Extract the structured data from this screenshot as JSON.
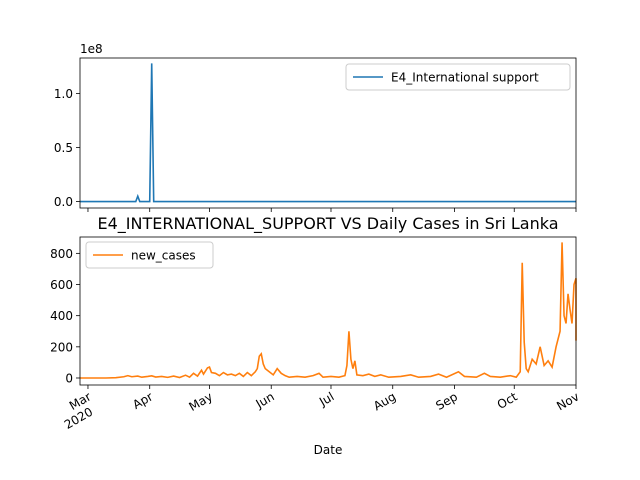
{
  "chart_data": [
    {
      "type": "line",
      "title": "",
      "xlabel": "",
      "ylabel": "",
      "y_scale_note": "1e8",
      "ylim": [
        -0.06,
        1.33
      ],
      "yticks": [
        0.0,
        0.5,
        1.0
      ],
      "ytick_labels": [
        "0.0",
        "0.5",
        "1.0"
      ],
      "legend_position": "upper-right",
      "series": [
        {
          "name": "E4_International support",
          "color": "#1f77b4",
          "points": [
            [
              "2020-02-26",
              0
            ],
            [
              "2020-03-25",
              0
            ],
            [
              "2020-03-26",
              0.05
            ],
            [
              "2020-03-27",
              0
            ],
            [
              "2020-04-01",
              0
            ],
            [
              "2020-04-02",
              1.28
            ],
            [
              "2020-04-03",
              0
            ],
            [
              "2020-11-01",
              0
            ]
          ]
        }
      ]
    },
    {
      "type": "line",
      "title": "E4_INTERNATIONAL_SUPPORT VS Daily Cases in Sri Lanka",
      "xlabel": "Date",
      "ylabel": "",
      "ylim": [
        -45,
        905
      ],
      "yticks": [
        0,
        200,
        400,
        600,
        800
      ],
      "ytick_labels": [
        "0",
        "200",
        "400",
        "600",
        "800"
      ],
      "xlim": [
        "2020-02-26",
        "2020-11-01"
      ],
      "xticks": [
        "2020-03-01",
        "2020-04-01",
        "2020-05-01",
        "2020-06-01",
        "2020-07-01",
        "2020-08-01",
        "2020-09-01",
        "2020-10-01",
        "2020-11-01"
      ],
      "xtick_labels": [
        "Mar\n2020",
        "Apr",
        "May",
        "Jun",
        "Jul",
        "Aug",
        "Sep",
        "Oct",
        "Nov"
      ],
      "legend_position": "upper-left",
      "series": [
        {
          "name": "new_cases",
          "color": "#ff7f0e",
          "points": [
            [
              "2020-02-26",
              0
            ],
            [
              "2020-03-10",
              0
            ],
            [
              "2020-03-15",
              2
            ],
            [
              "2020-03-19",
              8
            ],
            [
              "2020-03-21",
              15
            ],
            [
              "2020-03-23",
              8
            ],
            [
              "2020-03-26",
              12
            ],
            [
              "2020-03-28",
              5
            ],
            [
              "2020-03-31",
              10
            ],
            [
              "2020-04-02",
              14
            ],
            [
              "2020-04-04",
              6
            ],
            [
              "2020-04-07",
              10
            ],
            [
              "2020-04-10",
              4
            ],
            [
              "2020-04-13",
              12
            ],
            [
              "2020-04-16",
              3
            ],
            [
              "2020-04-19",
              18
            ],
            [
              "2020-04-21",
              5
            ],
            [
              "2020-04-23",
              30
            ],
            [
              "2020-04-25",
              12
            ],
            [
              "2020-04-27",
              50
            ],
            [
              "2020-04-28",
              25
            ],
            [
              "2020-04-30",
              65
            ],
            [
              "2020-05-01",
              70
            ],
            [
              "2020-05-02",
              35
            ],
            [
              "2020-05-04",
              30
            ],
            [
              "2020-05-06",
              15
            ],
            [
              "2020-05-08",
              35
            ],
            [
              "2020-05-10",
              20
            ],
            [
              "2020-05-12",
              25
            ],
            [
              "2020-05-14",
              15
            ],
            [
              "2020-05-16",
              30
            ],
            [
              "2020-05-18",
              10
            ],
            [
              "2020-05-20",
              35
            ],
            [
              "2020-05-22",
              15
            ],
            [
              "2020-05-24",
              40
            ],
            [
              "2020-05-25",
              60
            ],
            [
              "2020-05-26",
              140
            ],
            [
              "2020-05-27",
              155
            ],
            [
              "2020-05-28",
              90
            ],
            [
              "2020-05-29",
              60
            ],
            [
              "2020-05-31",
              40
            ],
            [
              "2020-06-02",
              20
            ],
            [
              "2020-06-04",
              60
            ],
            [
              "2020-06-06",
              30
            ],
            [
              "2020-06-08",
              15
            ],
            [
              "2020-06-10",
              5
            ],
            [
              "2020-06-14",
              10
            ],
            [
              "2020-06-18",
              5
            ],
            [
              "2020-06-22",
              15
            ],
            [
              "2020-06-25",
              30
            ],
            [
              "2020-06-27",
              5
            ],
            [
              "2020-07-01",
              10
            ],
            [
              "2020-07-05",
              5
            ],
            [
              "2020-07-08",
              15
            ],
            [
              "2020-07-09",
              80
            ],
            [
              "2020-07-10",
              300
            ],
            [
              "2020-07-11",
              120
            ],
            [
              "2020-07-12",
              60
            ],
            [
              "2020-07-13",
              110
            ],
            [
              "2020-07-14",
              20
            ],
            [
              "2020-07-17",
              15
            ],
            [
              "2020-07-20",
              25
            ],
            [
              "2020-07-23",
              10
            ],
            [
              "2020-07-26",
              20
            ],
            [
              "2020-07-30",
              5
            ],
            [
              "2020-08-05",
              10
            ],
            [
              "2020-08-10",
              20
            ],
            [
              "2020-08-14",
              5
            ],
            [
              "2020-08-20",
              10
            ],
            [
              "2020-08-24",
              25
            ],
            [
              "2020-08-28",
              5
            ],
            [
              "2020-09-03",
              40
            ],
            [
              "2020-09-06",
              10
            ],
            [
              "2020-09-12",
              5
            ],
            [
              "2020-09-16",
              30
            ],
            [
              "2020-09-19",
              10
            ],
            [
              "2020-09-24",
              5
            ],
            [
              "2020-09-29",
              15
            ],
            [
              "2020-10-02",
              5
            ],
            [
              "2020-10-04",
              40
            ],
            [
              "2020-10-05",
              740
            ],
            [
              "2020-10-06",
              230
            ],
            [
              "2020-10-07",
              60
            ],
            [
              "2020-10-08",
              40
            ],
            [
              "2020-10-10",
              120
            ],
            [
              "2020-10-12",
              90
            ],
            [
              "2020-10-14",
              200
            ],
            [
              "2020-10-16",
              80
            ],
            [
              "2020-10-18",
              110
            ],
            [
              "2020-10-20",
              70
            ],
            [
              "2020-10-22",
              200
            ],
            [
              "2020-10-24",
              300
            ],
            [
              "2020-10-25",
              870
            ],
            [
              "2020-10-26",
              400
            ],
            [
              "2020-10-27",
              350
            ],
            [
              "2020-10-28",
              540
            ],
            [
              "2020-10-29",
              440
            ],
            [
              "2020-10-30",
              350
            ],
            [
              "2020-10-31",
              600
            ],
            [
              "2020-11-01",
              640
            ],
            [
              "2020-11-01",
              240
            ]
          ]
        }
      ]
    }
  ]
}
